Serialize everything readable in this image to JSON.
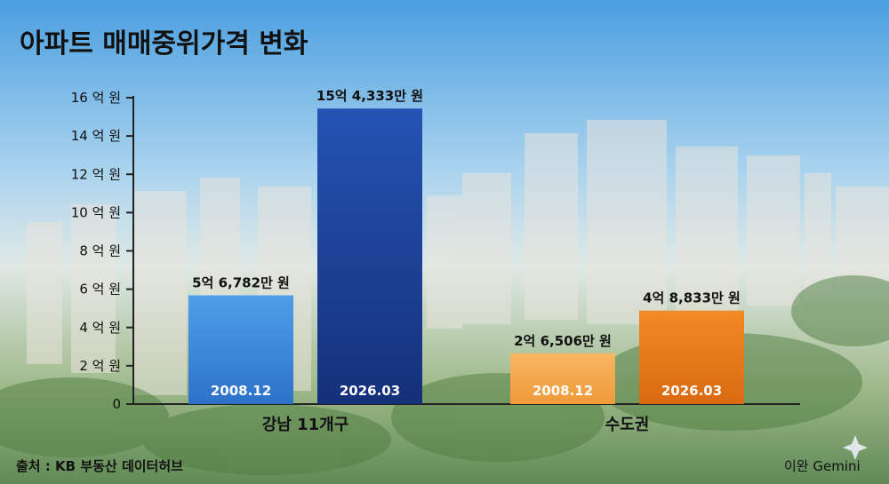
{
  "colors": {
    "blue_light": "#3f8fe0",
    "blue_dark": "#1a3f95",
    "orange_light": "#f5a84c",
    "orange_dark": "#e57817",
    "axis": "#222222"
  },
  "chart_data": {
    "type": "bar",
    "title": "아파트 매매중위가격 변화",
    "ylim": [
      0,
      16
    ],
    "yticks": [
      {
        "value": 0,
        "label": "0"
      },
      {
        "value": 2,
        "label": "2 억 원"
      },
      {
        "value": 4,
        "label": "4 억 원"
      },
      {
        "value": 6,
        "label": "6 억 원"
      },
      {
        "value": 8,
        "label": "8 억 원"
      },
      {
        "value": 10,
        "label": "10 억 원"
      },
      {
        "value": 12,
        "label": "12 억 원"
      },
      {
        "value": 14,
        "label": "14 억 원"
      },
      {
        "value": 16,
        "label": "16 억 원"
      }
    ],
    "groups": [
      {
        "name": "강남 11개구",
        "bars": [
          {
            "period": "2008.12",
            "value": 5.6782,
            "label": "5억 6,782만 원",
            "color": "#3f8fe0"
          },
          {
            "period": "2026.03",
            "value": 15.4333,
            "label": "15억 4,333만 원",
            "color": "#1a3f95"
          }
        ]
      },
      {
        "name": "수도권",
        "bars": [
          {
            "period": "2008.12",
            "value": 2.6506,
            "label": "2억 6,506만 원",
            "color": "#f5a84c"
          },
          {
            "period": "2026.03",
            "value": 4.8833,
            "label": "4억 8,833만 원",
            "color": "#e57817"
          }
        ]
      }
    ],
    "grid": false,
    "legend": "none"
  },
  "footer": {
    "source": "출처 : KB 부동산 데이터허브",
    "credit": "이완 Gemini"
  }
}
